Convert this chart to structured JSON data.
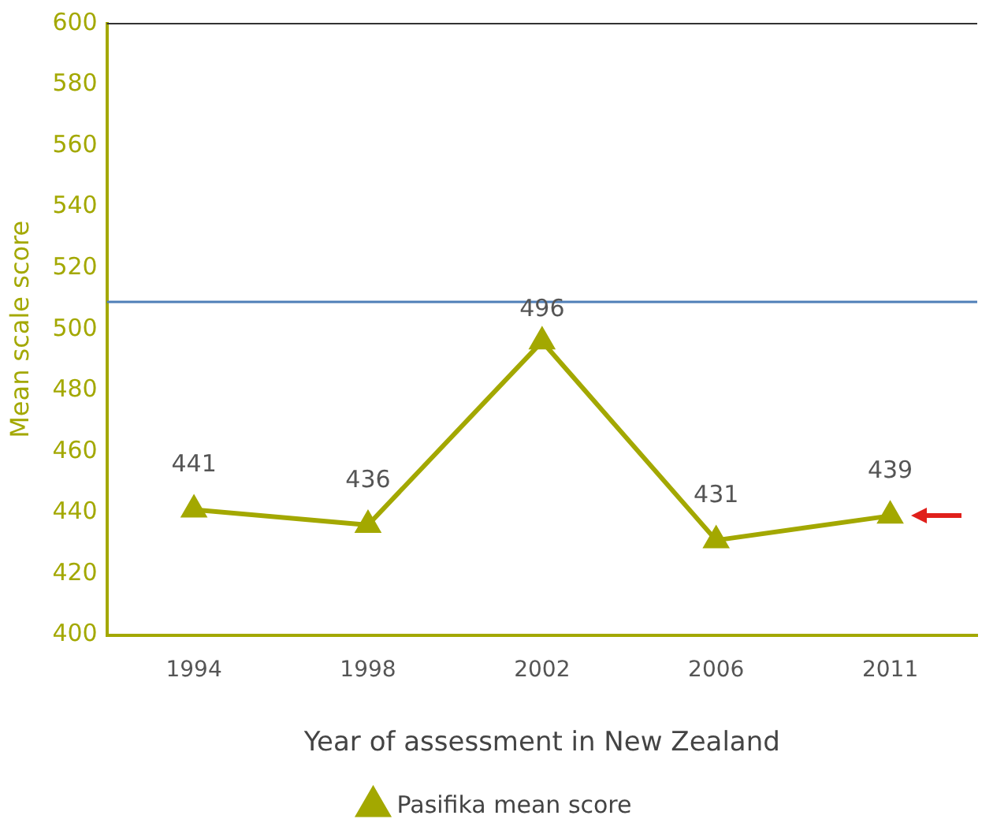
{
  "chart_data": {
    "type": "line",
    "xlabel": "Year of assessment in New Zealand",
    "ylabel": "Mean scale score",
    "categories": [
      "1994",
      "1998",
      "2002",
      "2006",
      "2011"
    ],
    "series": [
      {
        "name": "Pasifika mean score",
        "color": "#a3a800",
        "values": [
          441,
          436,
          496,
          431,
          439
        ]
      }
    ],
    "ylim": [
      400,
      600
    ],
    "yticks": [
      400,
      420,
      440,
      460,
      480,
      500,
      520,
      540,
      560,
      580,
      600
    ],
    "ref_lines": [
      {
        "axis": "y",
        "value": 509,
        "color": "#4f7fb8"
      }
    ],
    "data_labels": true,
    "marker": "triangle",
    "line_style": "solid",
    "grid": false,
    "legend": "bottom"
  }
}
